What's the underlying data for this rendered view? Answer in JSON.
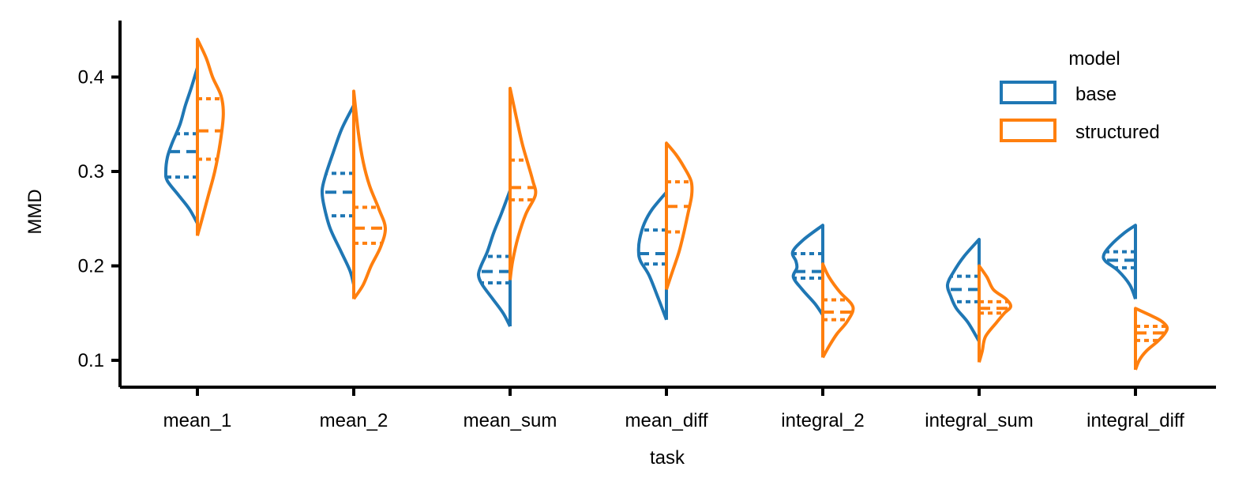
{
  "colors": {
    "base": "#1f77b4",
    "structured": "#ff7f0e"
  },
  "chart_data": {
    "type": "violin",
    "split": true,
    "inner": "quartile",
    "title": "",
    "xlabel": "task",
    "ylabel": "MMD",
    "ylim": [
      0.072,
      0.46
    ],
    "yticks": [
      0.1,
      0.2,
      0.3,
      0.4
    ],
    "ytick_labels": [
      "0.1",
      "0.2",
      "0.3",
      "0.4"
    ],
    "categories": [
      "mean_1",
      "mean_2",
      "mean_sum",
      "mean_diff",
      "integral_2",
      "integral_sum",
      "integral_diff"
    ],
    "legend": {
      "title": "model",
      "position": "upper-right",
      "entries": [
        "base",
        "structured"
      ]
    },
    "series": [
      {
        "name": "base",
        "side": "left",
        "violins": [
          {
            "min": 0.245,
            "max": 0.41,
            "q1": 0.294,
            "median": 0.321,
            "q3": 0.34,
            "profile": [
              [
                0.245,
                0
              ],
              [
                0.26,
                0.25
              ],
              [
                0.275,
                0.6
              ],
              [
                0.29,
                0.95
              ],
              [
                0.3,
                1.0
              ],
              [
                0.315,
                0.95
              ],
              [
                0.33,
                0.8
              ],
              [
                0.35,
                0.55
              ],
              [
                0.37,
                0.38
              ],
              [
                0.39,
                0.18
              ],
              [
                0.41,
                0
              ]
            ]
          },
          {
            "min": 0.18,
            "max": 0.37,
            "q1": 0.253,
            "median": 0.278,
            "q3": 0.298,
            "profile": [
              [
                0.18,
                0
              ],
              [
                0.195,
                0.12
              ],
              [
                0.215,
                0.4
              ],
              [
                0.24,
                0.75
              ],
              [
                0.265,
                0.95
              ],
              [
                0.28,
                1.0
              ],
              [
                0.295,
                0.9
              ],
              [
                0.32,
                0.65
              ],
              [
                0.345,
                0.38
              ],
              [
                0.37,
                0
              ]
            ]
          },
          {
            "min": 0.136,
            "max": 0.28,
            "q1": 0.182,
            "median": 0.194,
            "q3": 0.21,
            "profile": [
              [
                0.136,
                0
              ],
              [
                0.15,
                0.22
              ],
              [
                0.165,
                0.55
              ],
              [
                0.18,
                0.88
              ],
              [
                0.19,
                1.0
              ],
              [
                0.2,
                0.92
              ],
              [
                0.215,
                0.72
              ],
              [
                0.235,
                0.52
              ],
              [
                0.255,
                0.28
              ],
              [
                0.28,
                0
              ]
            ]
          },
          {
            "min": 0.143,
            "max": 0.278,
            "q1": 0.202,
            "median": 0.213,
            "q3": 0.238,
            "profile": [
              [
                0.143,
                0
              ],
              [
                0.165,
                0.25
              ],
              [
                0.19,
                0.55
              ],
              [
                0.205,
                0.82
              ],
              [
                0.215,
                0.88
              ],
              [
                0.228,
                0.85
              ],
              [
                0.245,
                0.7
              ],
              [
                0.26,
                0.45
              ],
              [
                0.278,
                0
              ]
            ]
          },
          {
            "min": 0.148,
            "max": 0.243,
            "q1": 0.187,
            "median": 0.194,
            "q3": 0.213,
            "profile": [
              [
                0.148,
                0
              ],
              [
                0.16,
                0.25
              ],
              [
                0.175,
                0.65
              ],
              [
                0.188,
                0.93
              ],
              [
                0.198,
                0.82
              ],
              [
                0.205,
                0.85
              ],
              [
                0.215,
                0.95
              ],
              [
                0.228,
                0.6
              ],
              [
                0.243,
                0
              ]
            ]
          },
          {
            "min": 0.12,
            "max": 0.228,
            "q1": 0.162,
            "median": 0.175,
            "q3": 0.189,
            "profile": [
              [
                0.12,
                0
              ],
              [
                0.14,
                0.35
              ],
              [
                0.155,
                0.72
              ],
              [
                0.168,
                0.9
              ],
              [
                0.18,
                1.0
              ],
              [
                0.193,
                0.82
              ],
              [
                0.21,
                0.48
              ],
              [
                0.228,
                0
              ]
            ]
          },
          {
            "min": 0.165,
            "max": 0.243,
            "q1": 0.198,
            "median": 0.206,
            "q3": 0.215,
            "profile": [
              [
                0.165,
                0
              ],
              [
                0.18,
                0.18
              ],
              [
                0.195,
                0.55
              ],
              [
                0.205,
                0.95
              ],
              [
                0.212,
                1.0
              ],
              [
                0.222,
                0.78
              ],
              [
                0.235,
                0.35
              ],
              [
                0.243,
                0
              ]
            ]
          }
        ]
      },
      {
        "name": "structured",
        "side": "right",
        "violins": [
          {
            "min": 0.232,
            "max": 0.44,
            "q1": 0.313,
            "median": 0.343,
            "q3": 0.377,
            "profile": [
              [
                0.232,
                0
              ],
              [
                0.25,
                0.15
              ],
              [
                0.275,
                0.35
              ],
              [
                0.3,
                0.55
              ],
              [
                0.33,
                0.72
              ],
              [
                0.36,
                0.82
              ],
              [
                0.38,
                0.75
              ],
              [
                0.4,
                0.48
              ],
              [
                0.42,
                0.28
              ],
              [
                0.44,
                0
              ]
            ]
          },
          {
            "min": 0.165,
            "max": 0.385,
            "q1": 0.224,
            "median": 0.24,
            "q3": 0.262,
            "profile": [
              [
                0.165,
                0
              ],
              [
                0.18,
                0.3
              ],
              [
                0.2,
                0.55
              ],
              [
                0.22,
                0.85
              ],
              [
                0.24,
                1.0
              ],
              [
                0.26,
                0.8
              ],
              [
                0.285,
                0.5
              ],
              [
                0.31,
                0.3
              ],
              [
                0.34,
                0.15
              ],
              [
                0.385,
                0
              ]
            ]
          },
          {
            "min": 0.185,
            "max": 0.388,
            "q1": 0.27,
            "median": 0.283,
            "q3": 0.312,
            "profile": [
              [
                0.185,
                0
              ],
              [
                0.205,
                0.08
              ],
              [
                0.23,
                0.25
              ],
              [
                0.255,
                0.5
              ],
              [
                0.275,
                0.8
              ],
              [
                0.29,
                0.72
              ],
              [
                0.31,
                0.55
              ],
              [
                0.33,
                0.38
              ],
              [
                0.36,
                0.18
              ],
              [
                0.388,
                0
              ]
            ]
          },
          {
            "min": 0.175,
            "max": 0.33,
            "q1": 0.236,
            "median": 0.263,
            "q3": 0.289,
            "profile": [
              [
                0.175,
                0
              ],
              [
                0.195,
                0.2
              ],
              [
                0.215,
                0.4
              ],
              [
                0.235,
                0.55
              ],
              [
                0.255,
                0.68
              ],
              [
                0.275,
                0.8
              ],
              [
                0.29,
                0.78
              ],
              [
                0.305,
                0.55
              ],
              [
                0.318,
                0.3
              ],
              [
                0.33,
                0
              ]
            ]
          },
          {
            "min": 0.103,
            "max": 0.202,
            "q1": 0.143,
            "median": 0.151,
            "q3": 0.164,
            "profile": [
              [
                0.103,
                0
              ],
              [
                0.115,
                0.2
              ],
              [
                0.128,
                0.45
              ],
              [
                0.14,
                0.75
              ],
              [
                0.152,
                0.95
              ],
              [
                0.16,
                0.9
              ],
              [
                0.172,
                0.55
              ],
              [
                0.188,
                0.2
              ],
              [
                0.202,
                0
              ]
            ]
          },
          {
            "min": 0.098,
            "max": 0.2,
            "q1": 0.15,
            "median": 0.155,
            "q3": 0.162,
            "profile": [
              [
                0.098,
                0
              ],
              [
                0.11,
                0.1
              ],
              [
                0.125,
                0.2
              ],
              [
                0.14,
                0.55
              ],
              [
                0.15,
                0.8
              ],
              [
                0.157,
                1.0
              ],
              [
                0.165,
                0.85
              ],
              [
                0.175,
                0.45
              ],
              [
                0.188,
                0.25
              ],
              [
                0.2,
                0
              ]
            ]
          },
          {
            "min": 0.09,
            "max": 0.155,
            "q1": 0.121,
            "median": 0.129,
            "q3": 0.136,
            "profile": [
              [
                0.09,
                0
              ],
              [
                0.1,
                0.12
              ],
              [
                0.11,
                0.35
              ],
              [
                0.12,
                0.7
              ],
              [
                0.128,
                0.92
              ],
              [
                0.135,
                1.0
              ],
              [
                0.142,
                0.8
              ],
              [
                0.148,
                0.45
              ],
              [
                0.155,
                0
              ]
            ]
          }
        ]
      }
    ]
  }
}
